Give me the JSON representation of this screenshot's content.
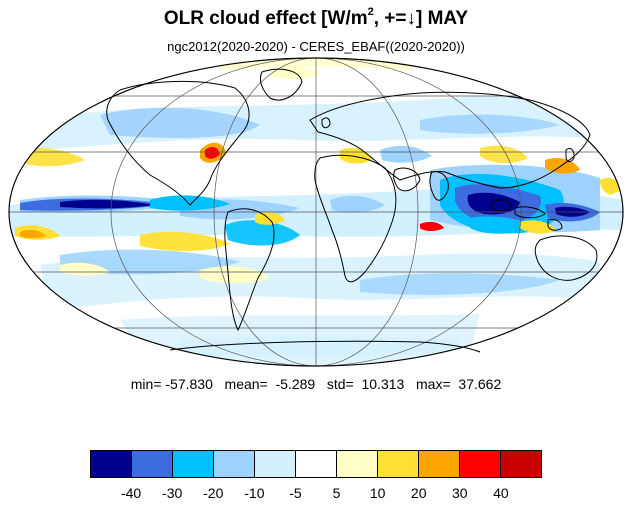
{
  "header": {
    "title_main": "OLR cloud effect [W/m",
    "title_sup": "2",
    "title_rest": ", +=↓]  MAY",
    "subtitle": "ngc2012(2020-2020) - CERES_EBAF((2020-2020))"
  },
  "stats": {
    "text": "min= -57.830   mean=  -5.289   std=  10.313   max=  37.662",
    "min": -57.83,
    "mean": -5.289,
    "std": 10.313,
    "max": 37.662
  },
  "colorbar": {
    "colors": [
      "#00008f",
      "#3d6be0",
      "#00c0ff",
      "#9ed2ff",
      "#d2f0ff",
      "#ffffff",
      "#ffffc8",
      "#ffe033",
      "#ffa500",
      "#ff0000",
      "#c80000"
    ],
    "labels": [
      "-40",
      "-30",
      "-20",
      "-10",
      "-5",
      "5",
      "10",
      "20",
      "30",
      "40"
    ]
  },
  "map": {
    "projection": "mollweide",
    "background": "#ffffff",
    "land_outline": "#000000"
  }
}
